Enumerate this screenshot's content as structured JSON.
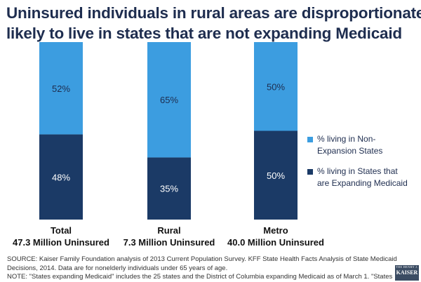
{
  "title": {
    "line1": "Uninsured individuals in rural areas are disproportionately",
    "line2": "likely to live in states that are not expanding Medicaid"
  },
  "colors": {
    "non_expansion": "#3c9de0",
    "expanding": "#1b3a66",
    "title": "#1e2d4f"
  },
  "chart_data": {
    "type": "bar",
    "stacked": true,
    "percent": true,
    "ylim": [
      0,
      100
    ],
    "grid": false,
    "legend_placement": "right",
    "categories": [
      {
        "name": "Total",
        "sublabel": "47.3 Million Uninsured"
      },
      {
        "name": "Rural",
        "sublabel": "7.3 Million Uninsured"
      },
      {
        "name": "Metro",
        "sublabel": "40.0 Million Uninsured"
      }
    ],
    "series": [
      {
        "name": "% living in States that are Expanding Medicaid",
        "key": "expanding",
        "values": [
          48,
          35,
          50
        ],
        "labels": [
          "48%",
          "35%",
          "50%"
        ]
      },
      {
        "name": "% living in Non-Expansion States",
        "key": "non_expansion",
        "values": [
          52,
          65,
          50
        ],
        "labels": [
          "52%",
          "65%",
          "50%"
        ]
      }
    ]
  },
  "legend": {
    "non_expansion_line1": "% living in Non-",
    "non_expansion_line2": "Expansion States",
    "expanding_line1": "% living in States that",
    "expanding_line2": "are Expanding Medicaid"
  },
  "source": {
    "line1": "SOURCE: Kaiser Family Foundation analysis of 2013 Current Population Survey. KFF State Health Facts Analysis of State Medicaid",
    "line2": "Decisions, 2014. Data are for nonelderly individuals under 65 years of age.",
    "line3": "NOTE: \"States expanding Medicaid\" includes the 25 states and the District of Columbia expanding Medicaid as of March 1. \"States"
  },
  "logo": {
    "line1": "THE HENRY J.",
    "line2": "KAISER"
  }
}
